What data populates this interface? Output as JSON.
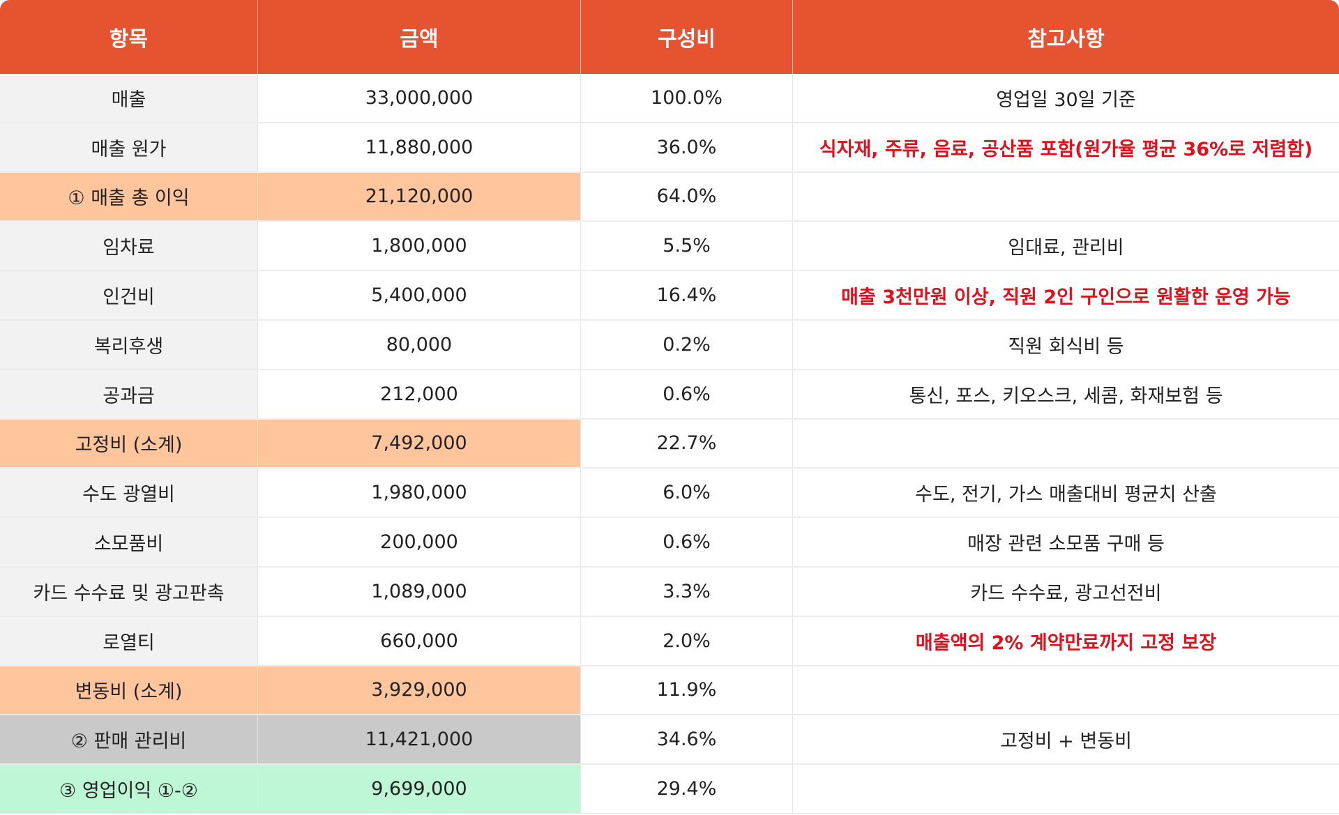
{
  "header": {
    "item": "항목",
    "amount": "금액",
    "ratio": "구성비",
    "note": "참고사항"
  },
  "colors": {
    "header_bg": "#e65331",
    "subtotal_bg": "#ffc59d",
    "sga_bg": "#c9c9c9",
    "profit_bg": "#bdf7d6",
    "note_highlight": "#e0101c"
  },
  "rows": [
    {
      "item": "매출",
      "amount": "33,000,000",
      "ratio": "100.0%",
      "note": "영업일 30일 기준",
      "note_emphasis": false
    },
    {
      "item": "매출 원가",
      "amount": "11,880,000",
      "ratio": "36.0%",
      "note": "식자재, 주류, 음료, 공산품 포함(원가율 평균 36%로 저렴함)",
      "note_emphasis": true
    },
    {
      "item": "① 매출 총 이익",
      "amount": "21,120,000",
      "ratio": "64.0%",
      "note": "",
      "note_emphasis": false
    },
    {
      "item": "임차료",
      "amount": "1,800,000",
      "ratio": "5.5%",
      "note": "임대료, 관리비",
      "note_emphasis": false
    },
    {
      "item": "인건비",
      "amount": "5,400,000",
      "ratio": "16.4%",
      "note": "매출 3천만원 이상, 직원 2인 구인으로 원활한 운영 가능",
      "note_emphasis": true
    },
    {
      "item": "복리후생",
      "amount": "80,000",
      "ratio": "0.2%",
      "note": "직원 회식비 등",
      "note_emphasis": false
    },
    {
      "item": "공과금",
      "amount": "212,000",
      "ratio": "0.6%",
      "note": "통신, 포스, 키오스크, 세콤, 화재보험 등",
      "note_emphasis": false
    },
    {
      "item": "고정비 (소계)",
      "amount": "7,492,000",
      "ratio": "22.7%",
      "note": "",
      "note_emphasis": false
    },
    {
      "item": "수도 광열비",
      "amount": "1,980,000",
      "ratio": "6.0%",
      "note": "수도, 전기, 가스 매출대비 평균치 산출",
      "note_emphasis": false
    },
    {
      "item": "소모품비",
      "amount": "200,000",
      "ratio": "0.6%",
      "note": "매장 관련 소모품 구매 등",
      "note_emphasis": false
    },
    {
      "item": "카드 수수료 및 광고판촉",
      "amount": "1,089,000",
      "ratio": "3.3%",
      "note": "카드 수수료, 광고선전비",
      "note_emphasis": false
    },
    {
      "item": "로열티",
      "amount": "660,000",
      "ratio": "2.0%",
      "note": "매출액의 2% 계약만료까지 고정 보장",
      "note_emphasis": true
    },
    {
      "item": "변동비 (소계)",
      "amount": "3,929,000",
      "ratio": "11.9%",
      "note": "",
      "note_emphasis": false
    },
    {
      "item": "② 판매 관리비",
      "amount": "11,421,000",
      "ratio": "34.6%",
      "note": "고정비 + 변동비",
      "note_emphasis": false
    },
    {
      "item": "③ 영업이익 ①-②",
      "amount": "9,699,000",
      "ratio": "29.4%",
      "note": "",
      "note_emphasis": false
    }
  ]
}
